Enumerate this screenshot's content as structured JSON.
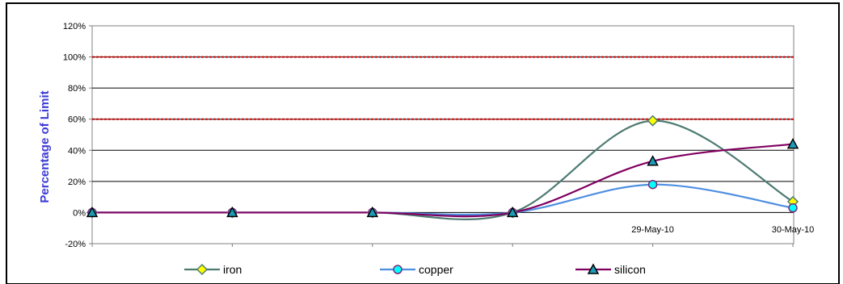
{
  "chart_data": {
    "type": "line",
    "ylabel": "Percentage of Limit",
    "xlabel": "",
    "title": "",
    "ylim": [
      -20,
      120
    ],
    "ytick_step": 20,
    "y_tick_labels": [
      "120%",
      "100%",
      "80%",
      "60%",
      "40%",
      "20%",
      "0%",
      "-20%"
    ],
    "x": [
      1,
      2,
      3,
      4,
      5,
      6
    ],
    "x_tick_labels": [
      "",
      "",
      "",
      "",
      "29-May-10",
      "30-May-10"
    ],
    "limit_lines": [
      100,
      60
    ],
    "limit_line_color": "#cc0000",
    "grid": true,
    "legend_position": "bottom",
    "series": [
      {
        "name": "iron",
        "values": [
          0,
          0,
          0,
          0,
          59,
          7
        ],
        "line_color": "#4e7b72",
        "marker": "diamond",
        "marker_fill": "#ffff00",
        "marker_stroke": "#4e7b72"
      },
      {
        "name": "copper",
        "values": [
          0,
          0,
          0,
          0,
          18,
          3
        ],
        "line_color": "#4d8fe0",
        "marker": "circle",
        "marker_fill": "#00ffff",
        "marker_stroke": "#7a2a7a"
      },
      {
        "name": "silicon",
        "values": [
          0,
          0,
          0,
          0,
          33,
          44
        ],
        "line_color": "#800060",
        "marker": "triangle",
        "marker_fill": "#1e9bb8",
        "marker_stroke": "#000000"
      }
    ]
  }
}
